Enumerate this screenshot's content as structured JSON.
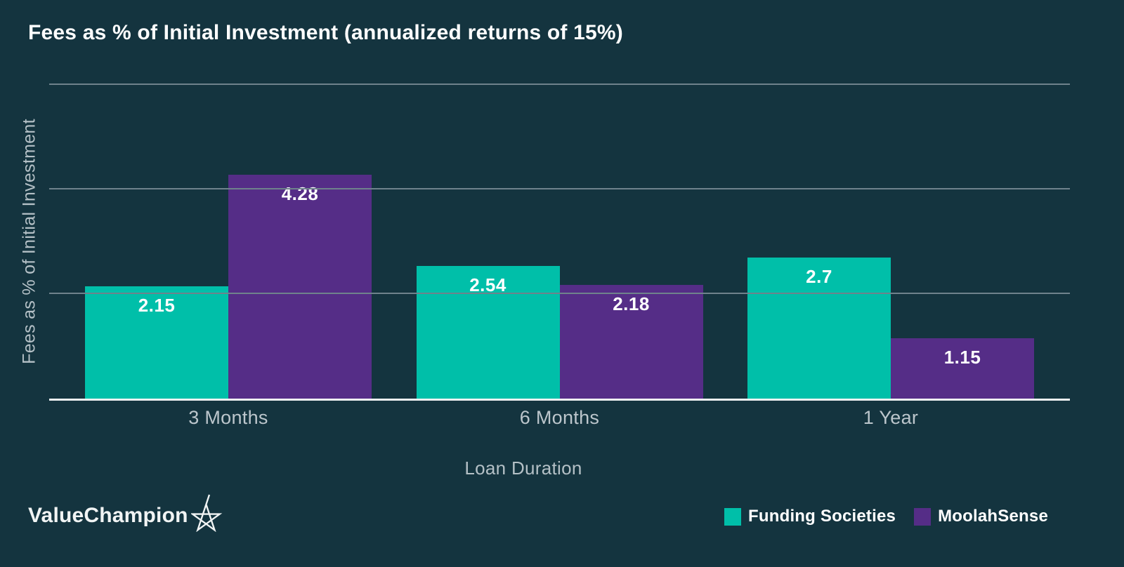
{
  "page": {
    "background_color": "#14343F"
  },
  "chart_data": {
    "type": "bar",
    "title": "Fees as % of Initial Investment (annualized returns of 15%)",
    "categories": [
      "3 Months",
      "6 Months",
      "1 Year"
    ],
    "series": [
      {
        "name": "Funding Societies",
        "color": "#00BFA9",
        "values": [
          2.15,
          2.54,
          2.7
        ]
      },
      {
        "name": "MoolahSense",
        "color": "#552D87",
        "values": [
          4.28,
          2.18,
          1.15
        ]
      }
    ],
    "xlabel": "Loan Duration",
    "ylabel": "Fees as % of Initial Investment",
    "ylim": [
      0,
      6
    ],
    "gridline_values": [
      2,
      4,
      6
    ],
    "grid": true,
    "legend_position": "bottom-right",
    "value_labels_shown": true
  },
  "axis_style": {
    "baseline_color": "#EDF1F1",
    "gridline_color": "#6F828C",
    "tick_label_color": "#BCC6CC"
  },
  "footer": {
    "logo_text": "ValueChampion",
    "logo_icon": "star-icon"
  }
}
